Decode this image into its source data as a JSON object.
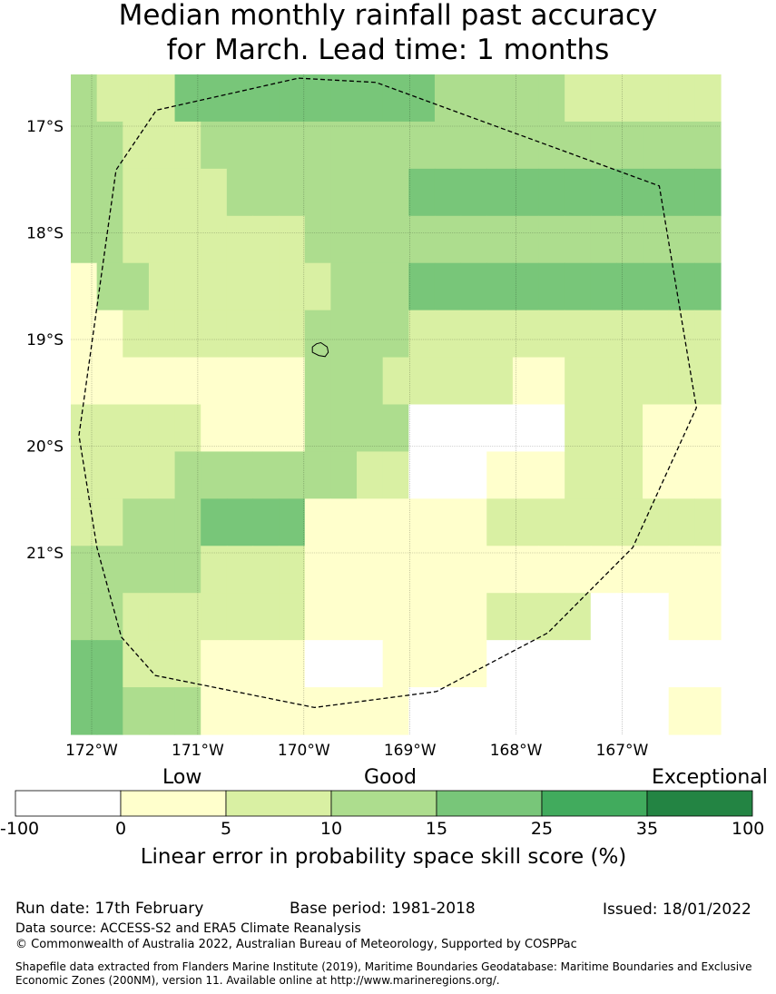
{
  "title": {
    "line1": "Median monthly rainfall past accuracy",
    "line2": "for March. Lead time: 1 months"
  },
  "map": {
    "lat_ticks": [
      "17°S",
      "18°S",
      "19°S",
      "20°S",
      "21°S"
    ],
    "lon_ticks": [
      "172°W",
      "171°W",
      "170°W",
      "169°W",
      "168°W",
      "167°W"
    ],
    "grid_levels": [
      [
        3,
        2,
        2,
        2,
        4,
        4,
        4,
        4,
        4,
        4,
        4,
        4,
        4,
        4,
        3,
        3,
        3,
        3,
        3,
        2,
        2,
        2,
        2,
        2,
        2
      ],
      [
        3,
        3,
        2,
        2,
        2,
        3,
        3,
        3,
        3,
        3,
        3,
        3,
        3,
        3,
        3,
        3,
        3,
        3,
        3,
        3,
        3,
        3,
        3,
        3,
        3
      ],
      [
        3,
        3,
        2,
        2,
        2,
        2,
        3,
        3,
        3,
        3,
        3,
        3,
        3,
        4,
        4,
        4,
        4,
        4,
        4,
        4,
        4,
        4,
        4,
        4,
        4
      ],
      [
        3,
        3,
        2,
        2,
        2,
        2,
        2,
        2,
        2,
        3,
        3,
        3,
        3,
        3,
        3,
        3,
        3,
        3,
        3,
        3,
        3,
        3,
        3,
        3,
        3
      ],
      [
        1,
        3,
        3,
        2,
        2,
        2,
        2,
        2,
        2,
        2,
        3,
        3,
        3,
        4,
        4,
        4,
        4,
        4,
        4,
        4,
        4,
        4,
        4,
        4,
        4
      ],
      [
        1,
        1,
        2,
        2,
        2,
        2,
        2,
        2,
        2,
        3,
        3,
        3,
        3,
        2,
        2,
        2,
        2,
        2,
        2,
        2,
        2,
        2,
        2,
        2,
        2
      ],
      [
        1,
        1,
        1,
        1,
        1,
        1,
        1,
        1,
        1,
        3,
        3,
        3,
        2,
        2,
        2,
        2,
        2,
        1,
        1,
        2,
        2,
        2,
        2,
        2,
        2
      ],
      [
        2,
        2,
        2,
        2,
        2,
        1,
        1,
        1,
        1,
        3,
        3,
        3,
        3,
        0,
        0,
        0,
        0,
        0,
        0,
        2,
        2,
        2,
        1,
        1,
        1
      ],
      [
        2,
        2,
        2,
        2,
        3,
        3,
        3,
        3,
        3,
        3,
        3,
        2,
        2,
        0,
        0,
        0,
        1,
        1,
        1,
        2,
        2,
        2,
        1,
        1,
        1
      ],
      [
        2,
        2,
        3,
        3,
        3,
        4,
        4,
        4,
        4,
        1,
        1,
        1,
        1,
        1,
        1,
        1,
        2,
        2,
        2,
        2,
        2,
        2,
        2,
        2,
        2
      ],
      [
        3,
        3,
        3,
        3,
        3,
        2,
        2,
        2,
        2,
        1,
        1,
        1,
        1,
        1,
        1,
        1,
        1,
        1,
        1,
        1,
        1,
        1,
        1,
        1,
        1
      ],
      [
        3,
        3,
        2,
        2,
        2,
        2,
        2,
        2,
        2,
        1,
        1,
        1,
        1,
        1,
        1,
        1,
        2,
        2,
        2,
        2,
        0,
        0,
        0,
        1,
        1
      ],
      [
        4,
        4,
        2,
        2,
        2,
        1,
        1,
        1,
        1,
        0,
        0,
        0,
        1,
        1,
        1,
        1,
        0,
        0,
        0,
        0,
        0,
        0,
        0,
        0,
        0
      ],
      [
        4,
        4,
        3,
        3,
        3,
        1,
        1,
        1,
        1,
        1,
        1,
        1,
        1,
        0,
        0,
        0,
        0,
        0,
        0,
        0,
        0,
        0,
        0,
        1,
        1
      ]
    ],
    "colors": [
      "#ffffff",
      "#ffffcc",
      "#d9f0a3",
      "#addd8e",
      "#78c679",
      "#41ab5d",
      "#238443"
    ],
    "land_points": [
      {
        "lon": -169.84,
        "lat": -19.03
      },
      {
        "lon": -169.78,
        "lat": -19.07
      },
      {
        "lon": -169.77,
        "lat": -19.12
      },
      {
        "lon": -169.8,
        "lat": -19.16
      },
      {
        "lon": -169.86,
        "lat": -19.15
      },
      {
        "lon": -169.92,
        "lat": -19.12
      },
      {
        "lon": -169.92,
        "lat": -19.07
      },
      {
        "lon": -169.88,
        "lat": -19.04
      }
    ],
    "eez_points": [
      {
        "lon": -170.05,
        "lat": -16.55
      },
      {
        "lon": -169.32,
        "lat": -16.59
      },
      {
        "lon": -166.65,
        "lat": -17.56
      },
      {
        "lon": -166.3,
        "lat": -19.64
      },
      {
        "lon": -166.9,
        "lat": -20.95
      },
      {
        "lon": -167.7,
        "lat": -21.75
      },
      {
        "lon": -168.75,
        "lat": -22.3
      },
      {
        "lon": -169.9,
        "lat": -22.45
      },
      {
        "lon": -171.4,
        "lat": -22.15
      },
      {
        "lon": -171.72,
        "lat": -21.79
      },
      {
        "lon": -171.95,
        "lat": -20.95
      },
      {
        "lon": -172.12,
        "lat": -19.9
      },
      {
        "lon": -171.77,
        "lat": -17.41
      },
      {
        "lon": -171.39,
        "lat": -16.85
      }
    ]
  },
  "colorbar": {
    "categories": [
      "Low",
      "Good",
      "Exceptional"
    ],
    "tick_labels": [
      "-100",
      "0",
      "5",
      "10",
      "15",
      "25",
      "35",
      "100"
    ],
    "title": "Linear error in probability space skill score (%)"
  },
  "footer": {
    "run_date": "Run date: 17th February",
    "base_period": "Base period: 1981-2018",
    "issued": "Issued: 18/01/2022",
    "data_source": "Data source: ACCESS-S2 and ERA5 Climate Reanalysis",
    "copyright": "© Commonwealth of Australia 2022, Australian Bureau of Meteorology, Supported by COSPPac",
    "shapefile": "Shapefile data extracted from Flanders Marine Institute (2019), Maritime Boundaries Geodatabase: Maritime Boundaries and Exclusive Economic Zones (200NM), version 11. Available online at http://www.marineregions.org/."
  }
}
